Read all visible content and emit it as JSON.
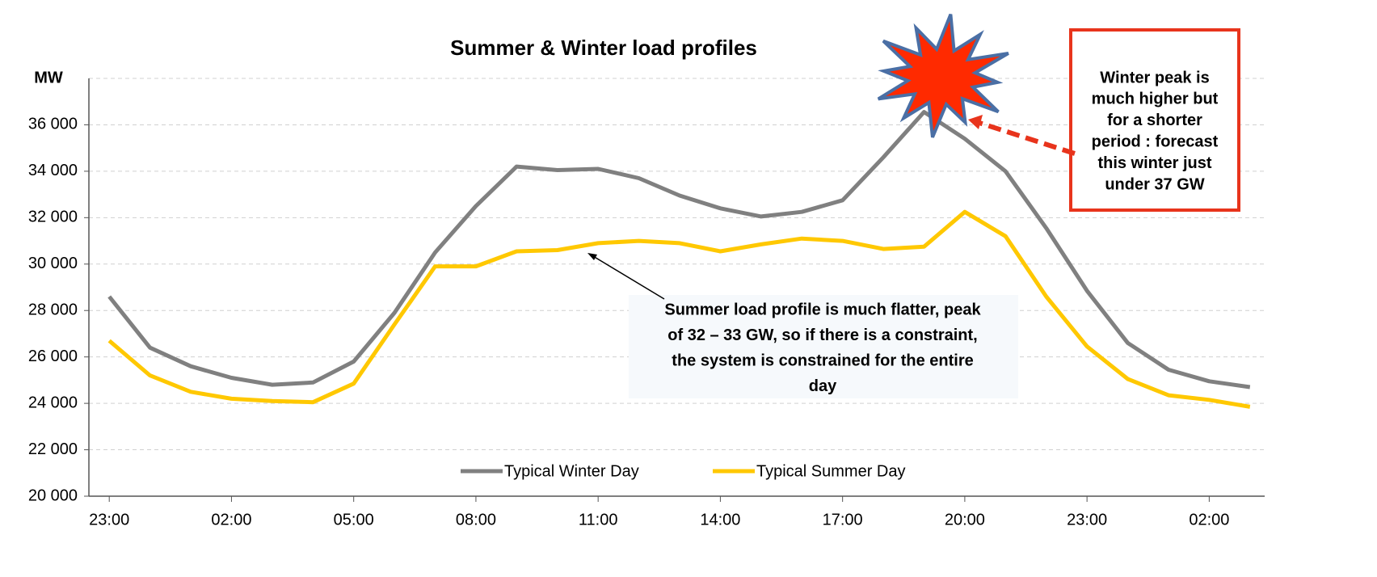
{
  "chart_data": {
    "type": "line",
    "title": "Summer & Winter load profiles",
    "y_label": "MW",
    "categories": [
      "23:00",
      null,
      null,
      "02:00",
      null,
      null,
      "05:00",
      null,
      null,
      "08:00",
      null,
      null,
      "11:00",
      null,
      null,
      "14:00",
      null,
      null,
      "17:00",
      null,
      null,
      "20:00",
      null,
      null,
      "23:00",
      null,
      null,
      "02:00",
      null
    ],
    "series": [
      {
        "name": "Typical Winter Day",
        "color": "#808080",
        "values": [
          28600,
          26400,
          25600,
          25100,
          24800,
          24900,
          25800,
          27900,
          30500,
          32500,
          34200,
          34050,
          34100,
          33700,
          32950,
          32400,
          32050,
          32250,
          32750,
          34600,
          36550,
          35400,
          34000,
          31550,
          28850,
          26600,
          25450,
          24950,
          24700
        ]
      },
      {
        "name": "Typical Summer Day",
        "color": "#ffc800",
        "values": [
          26700,
          25200,
          24500,
          24200,
          24100,
          24050,
          24850,
          27400,
          29900,
          29900,
          30550,
          30600,
          30900,
          31000,
          30900,
          30550,
          30850,
          31100,
          31000,
          30650,
          30750,
          32250,
          31200,
          28600,
          26450,
          25050,
          24350,
          24150,
          23850
        ]
      }
    ],
    "ylim": [
      20000,
      38000
    ],
    "yticks": [
      {
        "value": 20000,
        "label": "20 000"
      },
      {
        "value": 22000,
        "label": "22 000"
      },
      {
        "value": 24000,
        "label": "24 000"
      },
      {
        "value": 26000,
        "label": "26 000"
      },
      {
        "value": 28000,
        "label": "28 000"
      },
      {
        "value": 30000,
        "label": "30 000"
      },
      {
        "value": 32000,
        "label": "32 000"
      },
      {
        "value": 34000,
        "label": "34 000"
      },
      {
        "value": 36000,
        "label": "36 000"
      }
    ],
    "grid": true,
    "legend": "bottom",
    "annotations": [
      {
        "lines": [
          "Winter peak is",
          "much higher but",
          "for a shorter",
          "period : forecast",
          "this winter just",
          "under 37 GW"
        ]
      },
      {
        "lines": [
          "Summer load profile is much flatter, peak",
          "of 32 – 33 GW, so if there is a constraint,",
          "the system is constrained for the entire",
          "day"
        ]
      }
    ]
  }
}
